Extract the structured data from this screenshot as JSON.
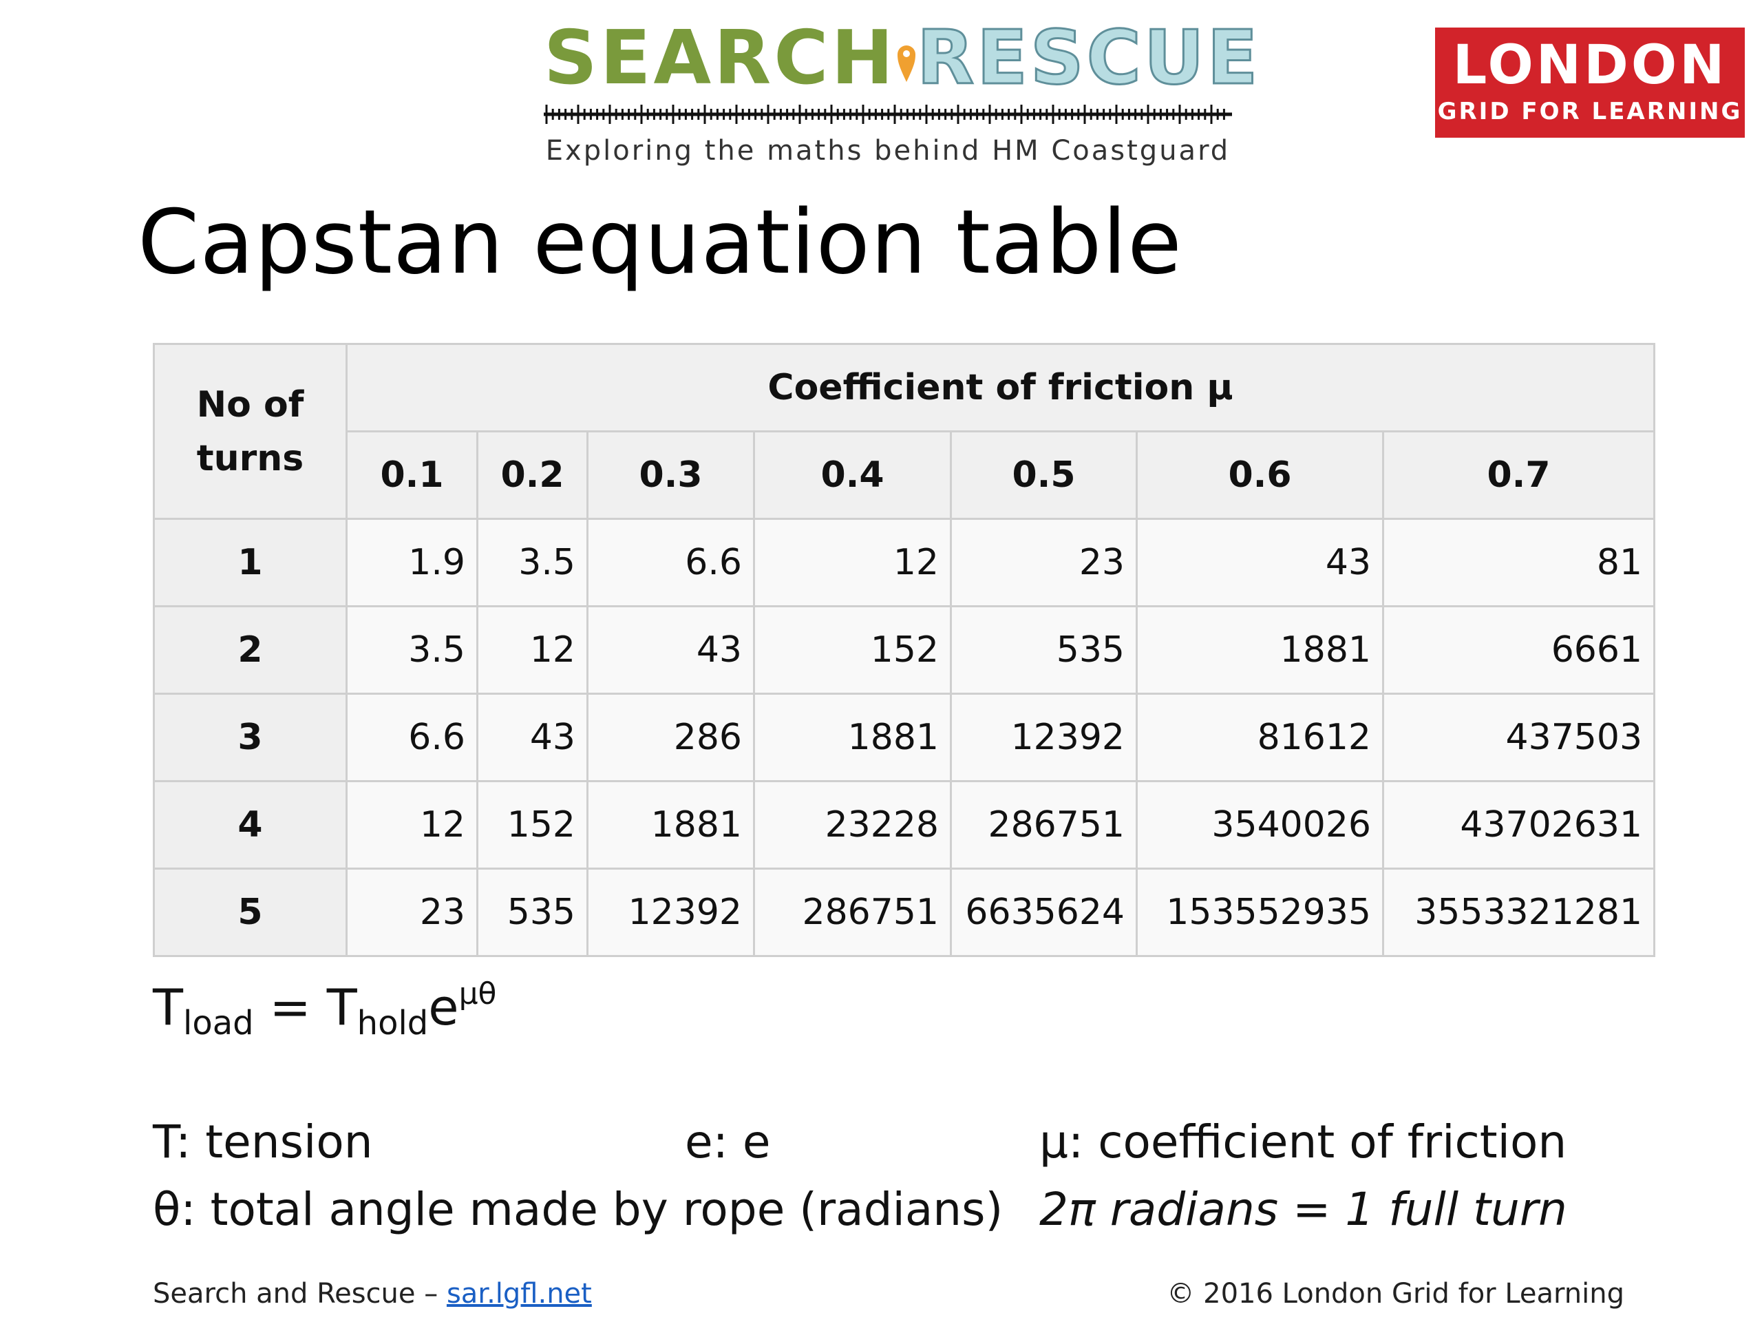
{
  "logo": {
    "title_part1": "SEARCH",
    "title_part2": "RESCUE",
    "tagline": "Exploring the maths behind HM Coastguard",
    "color_primary": "#7a9a3c",
    "color_secondary": "#b8dde2",
    "pin_color": "#f0a030"
  },
  "badge": {
    "line1": "LONDON",
    "line2": "GRID FOR LEARNING",
    "color": "#d2232a"
  },
  "title": "Capstan equation table",
  "table": {
    "corner_line1": "No of",
    "corner_line2": "turns",
    "group_header": "Coefficient of friction μ",
    "coefficients": [
      "0.1",
      "0.2",
      "0.3",
      "0.4",
      "0.5",
      "0.6",
      "0.7"
    ],
    "rows": [
      {
        "turns": "1",
        "values": [
          "1.9",
          "3.5",
          "6.6",
          "12",
          "23",
          "43",
          "81"
        ]
      },
      {
        "turns": "2",
        "values": [
          "3.5",
          "12",
          "43",
          "152",
          "535",
          "1881",
          "6661"
        ]
      },
      {
        "turns": "3",
        "values": [
          "6.6",
          "43",
          "286",
          "1881",
          "12392",
          "81612",
          "437503"
        ]
      },
      {
        "turns": "4",
        "values": [
          "12",
          "152",
          "1881",
          "23228",
          "286751",
          "3540026",
          "43702631"
        ]
      },
      {
        "turns": "5",
        "values": [
          "23",
          "535",
          "12392",
          "286751",
          "6635624",
          "153552935",
          "3553321281"
        ]
      }
    ]
  },
  "formula": {
    "t1": "T",
    "sub1": "load",
    "eq": " = ",
    "t2": "T",
    "sub2": "hold",
    "e": "e",
    "exp": "μθ"
  },
  "legend": {
    "t": "T: tension",
    "e": "e: e",
    "mu": "μ: coefficient of friction",
    "theta": "θ: total angle made by rope (radians)",
    "turn": "2π radians = 1 full turn"
  },
  "footer": {
    "left_text": "Search and Rescue – ",
    "link": "sar.lgfl.net",
    "right_text": "© 2016 London Grid for Learning"
  }
}
